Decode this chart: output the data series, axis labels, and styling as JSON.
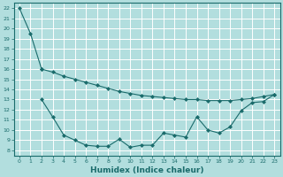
{
  "xlabel": "Humidex (Indice chaleur)",
  "background_color": "#b2dede",
  "grid_color": "#aacccc",
  "line_color": "#1a6b6b",
  "xlim": [
    -0.5,
    23.5
  ],
  "ylim": [
    7.5,
    22.5
  ],
  "yticks": [
    8,
    9,
    10,
    11,
    12,
    13,
    14,
    15,
    16,
    17,
    18,
    19,
    20,
    21,
    22
  ],
  "xticks": [
    0,
    1,
    2,
    3,
    4,
    5,
    6,
    7,
    8,
    9,
    10,
    11,
    12,
    13,
    14,
    15,
    16,
    17,
    18,
    19,
    20,
    21,
    22,
    23
  ],
  "line1_x": [
    0,
    1,
    2
  ],
  "line1_y": [
    22.0,
    19.5,
    16.0
  ],
  "line2_x": [
    2,
    3,
    4,
    5,
    6,
    7,
    8,
    9,
    10,
    11,
    12,
    13,
    14,
    15,
    16,
    17,
    18,
    19,
    20,
    21,
    22,
    23
  ],
  "line2_y": [
    16.0,
    15.7,
    15.3,
    15.0,
    14.7,
    14.4,
    14.1,
    13.8,
    13.6,
    13.4,
    13.3,
    13.2,
    13.1,
    13.0,
    13.0,
    12.9,
    12.9,
    12.9,
    13.0,
    13.1,
    13.3,
    13.5
  ],
  "line3_x": [
    2,
    3,
    4,
    5,
    6,
    7,
    8,
    9,
    10,
    11,
    12,
    13,
    14,
    15,
    16,
    17,
    18,
    19,
    20,
    21,
    22,
    23
  ],
  "line3_y": [
    13.0,
    11.3,
    9.5,
    9.0,
    8.5,
    8.4,
    8.4,
    9.1,
    8.3,
    8.5,
    8.5,
    9.7,
    9.5,
    9.3,
    11.3,
    10.0,
    9.7,
    10.3,
    11.9,
    12.7,
    12.8,
    13.5
  ]
}
